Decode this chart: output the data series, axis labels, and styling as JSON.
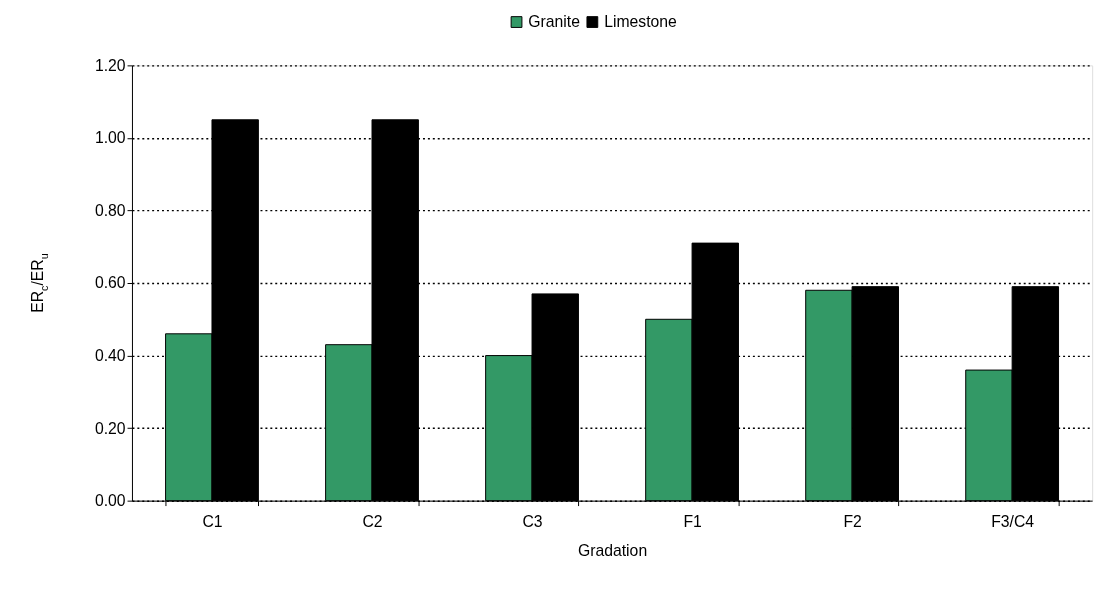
{
  "chart_data": {
    "type": "bar",
    "xlabel": "Gradation",
    "ylabel": "ER$_{c}$/ER$_{u}$",
    "categories": [
      "C1",
      "C2",
      "C3",
      "F1",
      "F2",
      "F3/C4"
    ],
    "series": [
      {
        "name": "Granite",
        "color": "#339966",
        "values": [
          0.46,
          0.43,
          0.4,
          0.5,
          0.58,
          0.36
        ]
      },
      {
        "name": "Limestone",
        "color": "#000000",
        "values": [
          1.05,
          1.05,
          0.57,
          0.71,
          0.59,
          0.59
        ]
      }
    ],
    "ylim": [
      0,
      1.2
    ],
    "yticks": [
      {
        "value": 0,
        "label": "0.00"
      },
      {
        "value": 0.2,
        "label": "0.20"
      },
      {
        "value": 0.4,
        "label": "0.40"
      },
      {
        "value": 0.6,
        "label": "0.60"
      },
      {
        "value": 0.8,
        "label": "0.80"
      },
      {
        "value": 1.0,
        "label": "1.00"
      },
      {
        "value": 1.2,
        "label": "1.20"
      }
    ],
    "grid": "y",
    "legend": "top",
    "line_style": "dotted"
  }
}
